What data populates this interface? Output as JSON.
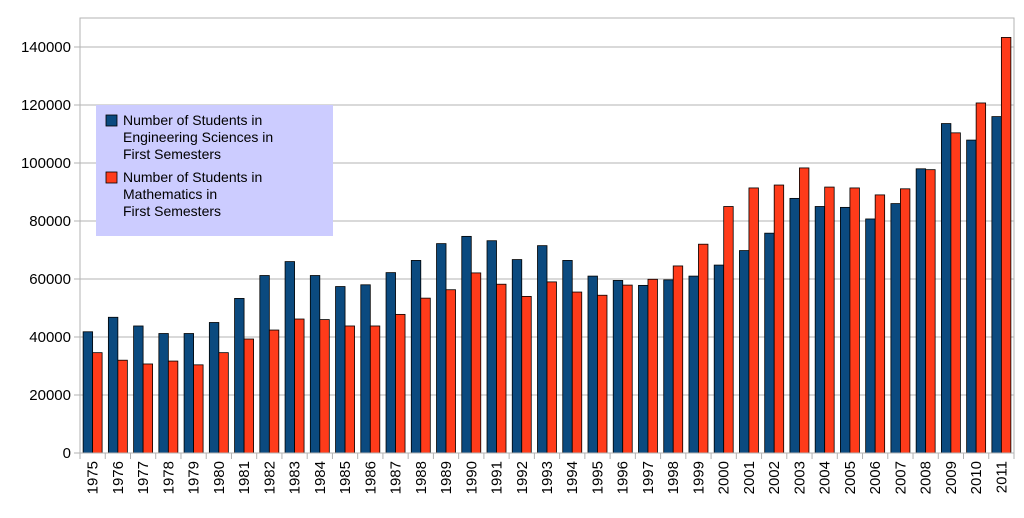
{
  "chart_data": {
    "type": "bar",
    "categories": [
      "1975",
      "1976",
      "1977",
      "1978",
      "1979",
      "1980",
      "1981",
      "1982",
      "1983",
      "1984",
      "1985",
      "1986",
      "1987",
      "1988",
      "1989",
      "1990",
      "1991",
      "1992",
      "1993",
      "1994",
      "1995",
      "1996",
      "1997",
      "1998",
      "1999",
      "2000",
      "2001",
      "2002",
      "2003",
      "2004",
      "2005",
      "2006",
      "2007",
      "2008",
      "2009",
      "2010",
      "2011"
    ],
    "series": [
      {
        "name": "Number of Students in Engineering Sciences in First Semesters",
        "name_lines": [
          "Number of Students in",
          "Engineering Sciences in",
          "First Semesters"
        ],
        "color": "#0b4a7f",
        "values": [
          41800,
          46800,
          43800,
          41200,
          41200,
          45000,
          53300,
          61200,
          66000,
          61200,
          57400,
          58000,
          62200,
          66400,
          72200,
          74700,
          73200,
          66700,
          71500,
          66400,
          61000,
          59500,
          57800,
          59700,
          61000,
          64800,
          69800,
          75800,
          87800,
          85000,
          84700,
          80700,
          86000,
          98000,
          113600,
          107900,
          116000
        ]
      },
      {
        "name": "Number of Students in Mathematics in First Semesters",
        "name_lines": [
          "Number of Students in",
          "Mathematics in",
          "First Semesters"
        ],
        "color": "#ff3b1a",
        "values": [
          34600,
          32000,
          30700,
          31700,
          30400,
          34600,
          39300,
          42400,
          46200,
          46000,
          43800,
          43800,
          47800,
          53400,
          56300,
          62100,
          58200,
          54000,
          59000,
          55500,
          54400,
          57900,
          59900,
          64500,
          72000,
          85000,
          91400,
          92400,
          98300,
          91700,
          91400,
          89000,
          91100,
          97700,
          110400,
          120700,
          143300
        ]
      }
    ],
    "title": "",
    "xlabel": "",
    "ylabel": "",
    "ylim": [
      0,
      150000
    ],
    "y_ticks": [
      "0",
      "20000",
      "40000",
      "60000",
      "80000",
      "100000",
      "120000",
      "140000"
    ],
    "y_tick_values": [
      0,
      20000,
      40000,
      60000,
      80000,
      100000,
      120000,
      140000
    ],
    "grid": "horizontal",
    "legend_position": "top-left",
    "legend_background": "#ccccff"
  }
}
